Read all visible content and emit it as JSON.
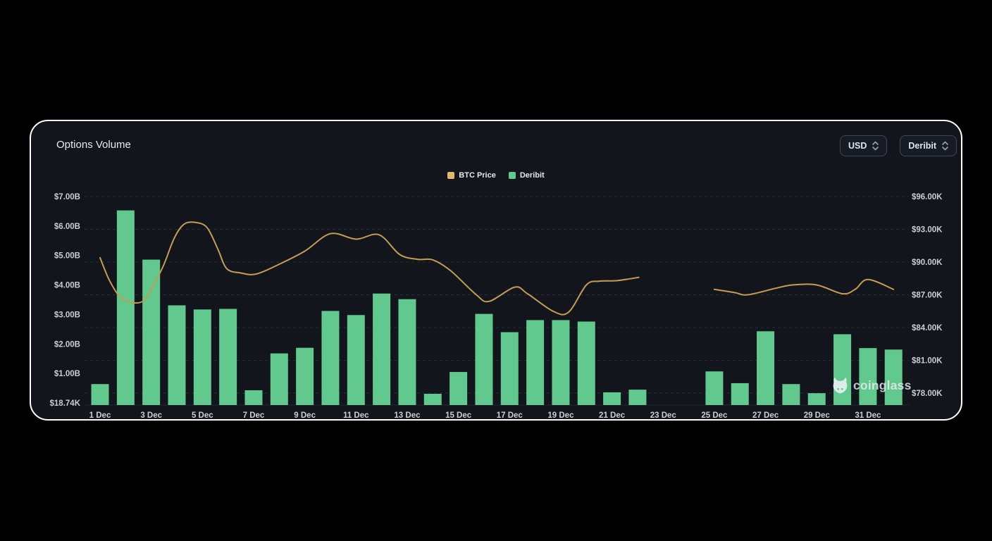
{
  "card": {
    "title": "Options Volume",
    "controls": {
      "currency_dropdown": {
        "value": "USD"
      },
      "exchange_dropdown": {
        "value": "Deribit"
      }
    },
    "watermark": "coinglass"
  },
  "legend": [
    {
      "label": "BTC Price",
      "color": "#e4b86a"
    },
    {
      "label": "Deribit",
      "color": "#5fc98e"
    }
  ],
  "colors": {
    "page_bg": "#000000",
    "card_bg": "#12151c",
    "card_border": "#ffffff",
    "bar_green": "#61c98e",
    "line_gold": "#c49d52",
    "grid_line": "#272c35",
    "axis_text": "#c9ced6",
    "baseline": "#232830"
  },
  "chart_data": {
    "type": "bar",
    "note": "Dual-axis combo: green volume bars (left axis, $B) + gold BTC price line (right axis, $K). No bars or price data for 23-24 Dec.",
    "title": "Options Volume",
    "x_ticks": [
      {
        "label": "1 Dec",
        "day": 0
      },
      {
        "label": "3 Dec",
        "day": 2
      },
      {
        "label": "5 Dec",
        "day": 4
      },
      {
        "label": "7 Dec",
        "day": 6
      },
      {
        "label": "9 Dec",
        "day": 8
      },
      {
        "label": "11 Dec",
        "day": 10
      },
      {
        "label": "13 Dec",
        "day": 12
      },
      {
        "label": "15 Dec",
        "day": 14
      },
      {
        "label": "17 Dec",
        "day": 16
      },
      {
        "label": "19 Dec",
        "day": 18
      },
      {
        "label": "21 Dec",
        "day": 20
      },
      {
        "label": "23 Dec",
        "day": 22
      },
      {
        "label": "25 Dec",
        "day": 24
      },
      {
        "label": "27 Dec",
        "day": 26
      },
      {
        "label": "29 Dec",
        "day": 28
      },
      {
        "label": "31 Dec",
        "day": 30
      }
    ],
    "y_left": {
      "labels": [
        "$7.00B",
        "$6.00B",
        "$5.00B",
        "$4.00B",
        "$3.00B",
        "$2.00B",
        "$1.00B",
        "$18.74K"
      ],
      "range_billions": [
        0,
        7
      ]
    },
    "y_right": {
      "labels": [
        "$96.00K",
        "$93.00K",
        "$90.00K",
        "$87.00K",
        "$84.00K",
        "$81.00K",
        "$78.00K"
      ],
      "range_thousands": [
        78,
        96
      ]
    },
    "grid": "dashed horizontal, aligned to right axis",
    "bar_series": {
      "name": "Deribit",
      "unit": "USD billions",
      "points": [
        {
          "date": "1 Dec",
          "day": 0,
          "value": 0.64
        },
        {
          "date": "2 Dec",
          "day": 1,
          "value": 6.53
        },
        {
          "date": "3 Dec",
          "day": 2,
          "value": 4.86
        },
        {
          "date": "4 Dec",
          "day": 3,
          "value": 3.31
        },
        {
          "date": "5 Dec",
          "day": 4,
          "value": 3.17
        },
        {
          "date": "6 Dec",
          "day": 5,
          "value": 3.19
        },
        {
          "date": "7 Dec",
          "day": 6,
          "value": 0.43
        },
        {
          "date": "8 Dec",
          "day": 7,
          "value": 1.68
        },
        {
          "date": "9 Dec",
          "day": 8,
          "value": 1.87
        },
        {
          "date": "10 Dec",
          "day": 9,
          "value": 3.12
        },
        {
          "date": "11 Dec",
          "day": 10,
          "value": 2.98
        },
        {
          "date": "12 Dec",
          "day": 11,
          "value": 3.71
        },
        {
          "date": "13 Dec",
          "day": 12,
          "value": 3.52
        },
        {
          "date": "14 Dec",
          "day": 13,
          "value": 0.31
        },
        {
          "date": "15 Dec",
          "day": 14,
          "value": 1.05
        },
        {
          "date": "16 Dec",
          "day": 15,
          "value": 3.02
        },
        {
          "date": "17 Dec",
          "day": 16,
          "value": 2.4
        },
        {
          "date": "18 Dec",
          "day": 17,
          "value": 2.81
        },
        {
          "date": "19 Dec",
          "day": 18,
          "value": 2.81
        },
        {
          "date": "20 Dec",
          "day": 19,
          "value": 2.76
        },
        {
          "date": "21 Dec",
          "day": 20,
          "value": 0.36
        },
        {
          "date": "22 Dec",
          "day": 21,
          "value": 0.45
        },
        {
          "date": "25 Dec",
          "day": 24,
          "value": 1.07
        },
        {
          "date": "26 Dec",
          "day": 25,
          "value": 0.67
        },
        {
          "date": "27 Dec",
          "day": 26,
          "value": 2.43
        },
        {
          "date": "28 Dec",
          "day": 27,
          "value": 0.64
        },
        {
          "date": "29 Dec",
          "day": 28,
          "value": 0.33
        },
        {
          "date": "30 Dec",
          "day": 29,
          "value": 2.33
        },
        {
          "date": "31 Dec",
          "day": 30,
          "value": 1.86
        },
        {
          "date": "1 Jan",
          "day": 31,
          "value": 1.81
        }
      ]
    },
    "line_series": {
      "name": "BTC Price",
      "unit": "USD thousands",
      "segments": [
        [
          [
            0,
            90.4
          ],
          [
            0.35,
            88.4
          ],
          [
            0.75,
            86.9
          ],
          [
            1.2,
            86.3
          ],
          [
            1.7,
            86.45
          ],
          [
            2.1,
            87.9
          ],
          [
            2.5,
            89.8
          ],
          [
            2.9,
            92.2
          ],
          [
            3.3,
            93.5
          ],
          [
            3.8,
            93.6
          ],
          [
            4.2,
            93.1
          ],
          [
            4.6,
            91.2
          ],
          [
            4.95,
            89.4
          ],
          [
            5.5,
            89.0
          ],
          [
            6.1,
            88.9
          ],
          [
            7,
            89.8
          ],
          [
            8,
            91.0
          ],
          [
            9,
            92.6
          ],
          [
            10,
            92.1
          ],
          [
            10.9,
            92.5
          ],
          [
            11.7,
            90.7
          ],
          [
            12.4,
            90.25
          ],
          [
            13,
            90.2
          ],
          [
            13.7,
            89.2
          ],
          [
            14.7,
            87.0
          ],
          [
            15.2,
            86.4
          ],
          [
            16.2,
            87.7
          ],
          [
            16.7,
            87.1
          ],
          [
            17.7,
            85.5
          ],
          [
            18.3,
            85.4
          ],
          [
            19,
            87.9
          ],
          [
            19.5,
            88.25
          ],
          [
            20.2,
            88.3
          ],
          [
            21.05,
            88.6
          ]
        ],
        [
          [
            24,
            87.5
          ],
          [
            24.8,
            87.2
          ],
          [
            25.3,
            87.0
          ],
          [
            26.4,
            87.6
          ],
          [
            27.05,
            87.9
          ],
          [
            28,
            87.9
          ],
          [
            29,
            87.1
          ],
          [
            29.5,
            87.5
          ],
          [
            30,
            88.4
          ],
          [
            31,
            87.5
          ]
        ]
      ]
    }
  }
}
